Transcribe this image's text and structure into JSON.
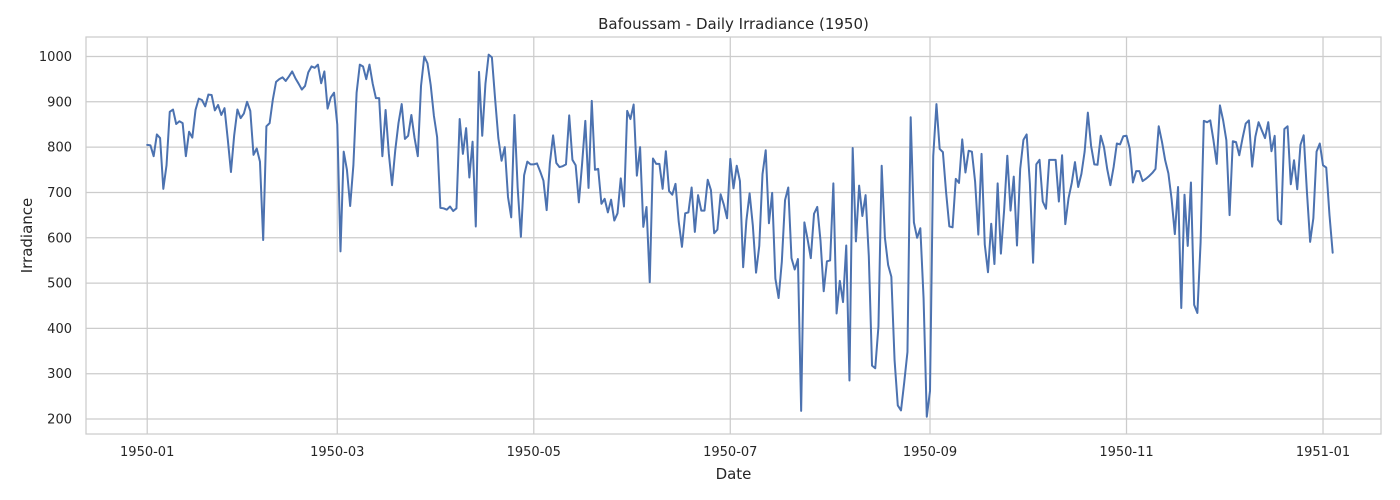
{
  "chart_data": {
    "type": "line",
    "title": "Bafoussam - Daily Irradiance (1950)",
    "xlabel": "Date",
    "ylabel": "Irradiance",
    "x_type": "date",
    "xlim": [
      "1949-12-13",
      "1951-01-19"
    ],
    "ylim": [
      167,
      1043
    ],
    "x_ticks": [
      "1950-01-01",
      "1950-03-01",
      "1950-05-01",
      "1950-07-01",
      "1950-09-01",
      "1950-11-01",
      "1951-01-01"
    ],
    "x_tick_labels": [
      "1950-01",
      "1950-03",
      "1950-05",
      "1950-07",
      "1950-09",
      "1950-11",
      "1951-01"
    ],
    "y_ticks": [
      200,
      300,
      400,
      500,
      600,
      700,
      800,
      900,
      1000
    ],
    "y_tick_labels": [
      "200",
      "300",
      "400",
      "500",
      "600",
      "700",
      "800",
      "900",
      "1000"
    ],
    "grid": true,
    "line_color": "#4c72b0",
    "series": [
      {
        "start_date": "1950-01-01",
        "values": [
          805,
          804,
          780,
          828,
          820,
          708,
          760,
          878,
          883,
          851,
          857,
          853,
          780,
          834,
          821,
          882,
          907,
          904,
          890,
          916,
          915,
          881,
          893,
          871,
          886,
          818,
          745,
          826,
          883,
          864,
          874,
          900,
          880,
          783,
          797,
          768,
          595,
          846,
          853,
          905,
          944,
          950,
          954,
          946,
          956,
          967,
          952,
          940,
          927,
          935,
          965,
          978,
          975,
          982,
          941,
          967,
          885,
          910,
          920,
          850,
          570,
          790,
          750,
          670,
          760,
          920,
          982,
          978,
          950,
          982,
          940,
          908,
          908,
          780,
          882,
          786,
          716,
          793,
          853,
          895,
          818,
          825,
          871,
          820,
          780,
          935,
          1000,
          985,
          937,
          869,
          822,
          666,
          665,
          662,
          669,
          659,
          665,
          862,
          785,
          842,
          733,
          812,
          625,
          966,
          825,
          940,
          1004,
          998,
          906,
          820,
          770,
          800,
          690,
          645,
          871,
          710,
          602,
          738,
          768,
          762,
          762,
          764,
          746,
          726,
          661,
          765,
          826,
          765,
          756,
          758,
          762,
          870,
          772,
          760,
          678,
          763,
          858,
          710,
          902,
          750,
          752,
          675,
          686,
          656,
          684,
          638,
          654,
          731,
          669,
          880,
          862,
          894,
          737,
          800,
          624,
          668,
          502,
          775,
          763,
          763,
          708,
          791,
          703,
          695,
          719,
          635,
          580,
          654,
          656,
          711,
          613,
          694,
          660,
          660,
          728,
          705,
          610,
          618,
          696,
          673,
          643,
          774,
          709,
          759,
          725,
          535,
          638,
          698,
          627,
          523,
          582,
          740,
          793,
          632,
          699,
          510,
          467,
          547,
          683,
          711,
          555,
          530,
          553,
          218,
          634,
          597,
          555,
          653,
          668,
          594,
          482,
          548,
          550,
          720,
          433,
          505,
          458,
          583,
          285,
          798,
          592,
          715,
          648,
          694,
          560,
          318,
          312,
          405,
          759,
          600,
          540,
          514,
          330,
          230,
          219,
          281,
          348,
          866,
          634,
          600,
          621,
          467,
          205,
          262,
          780,
          895,
          796,
          789,
          700,
          625,
          623,
          730,
          721,
          817,
          744,
          792,
          790,
          724,
          607,
          785,
          585,
          524,
          631,
          542,
          720,
          565,
          660,
          781,
          660,
          735,
          583,
          752,
          816,
          828,
          720,
          545,
          762,
          772,
          680,
          664,
          772,
          772,
          772,
          680,
          782,
          630,
          687,
          721,
          767,
          712,
          741,
          790,
          876,
          803,
          762,
          761,
          825,
          800,
          752,
          716,
          756,
          808,
          806,
          824,
          825,
          797,
          722,
          747,
          747,
          725,
          730,
          736,
          743,
          752,
          846,
          812,
          771,
          742,
          685,
          608,
          712,
          445,
          695,
          582,
          722,
          452,
          434,
          590,
          858,
          855,
          859,
          815,
          763,
          892,
          859,
          815,
          650,
          813,
          811,
          782,
          819,
          852,
          859,
          757,
          823,
          855,
          837,
          820,
          855,
          791,
          825,
          640,
          630,
          840,
          846,
          718,
          771,
          707,
          805,
          826,
          702,
          591,
          643,
          790,
          808,
          760,
          755,
          651,
          567
        ]
      }
    ]
  }
}
